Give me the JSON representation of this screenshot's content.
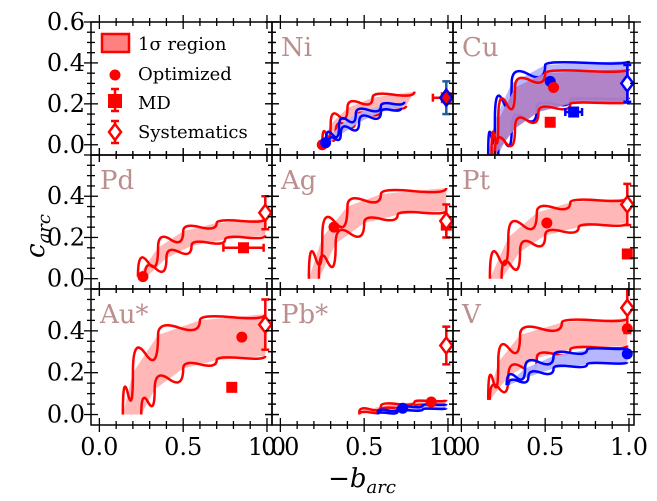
{
  "chart_data": {
    "type": "line",
    "layout": "3x3 grid of panels sharing axes",
    "xlabel": "−b_arc",
    "ylabel": "c_arc",
    "xlim": [
      -0.05,
      1.03
    ],
    "ylim": [
      -0.05,
      0.6
    ],
    "xticks": [
      "0.0",
      "0.5",
      "1.0"
    ],
    "yticks_top": [
      "0.0",
      "0.2",
      "0.4",
      "0.6"
    ],
    "yticks_other": [
      "0.0",
      "0.2",
      "0.4"
    ],
    "colors": {
      "red": "#ff0000",
      "red_fill": "#ffb3b3",
      "blue": "#0000ff",
      "blue_fill": "#b3b3ff",
      "overlap_fill": "#b07fc4",
      "steelblue": "#1f5f99",
      "label": "#bc8f8f"
    },
    "legend": {
      "position": "top-left panel",
      "entries": [
        {
          "label": "1σ region",
          "marker": "filled-rect"
        },
        {
          "label": "Optimized",
          "marker": "circle"
        },
        {
          "label": "MD",
          "marker": "square-errorbar"
        },
        {
          "label": "Systematics",
          "marker": "open-diamond-errorbar"
        }
      ]
    },
    "panels": [
      {
        "name": "legend",
        "row": 0,
        "col": 0,
        "label": ""
      },
      {
        "name": "Ni",
        "row": 0,
        "col": 1,
        "label": "Ni",
        "bands": [
          {
            "color": "red",
            "upper": [
              [
                0.25,
                0.0
              ],
              [
                0.3,
                0.1
              ],
              [
                0.4,
                0.18
              ],
              [
                0.55,
                0.23
              ],
              [
                0.8,
                0.26
              ]
            ],
            "lower": [
              [
                0.27,
                0.0
              ],
              [
                0.33,
                0.06
              ],
              [
                0.45,
                0.13
              ],
              [
                0.6,
                0.17
              ],
              [
                0.75,
                0.19
              ]
            ]
          },
          {
            "color": "blue",
            "upper": [
              [
                0.27,
                0.01
              ],
              [
                0.35,
                0.09
              ],
              [
                0.45,
                0.15
              ],
              [
                0.6,
                0.19
              ],
              [
                0.74,
                0.21
              ]
            ],
            "lower": [
              [
                0.29,
                0.01
              ],
              [
                0.36,
                0.05
              ],
              [
                0.47,
                0.11
              ],
              [
                0.6,
                0.16
              ],
              [
                0.72,
                0.18
              ]
            ]
          }
        ],
        "optimized": [
          {
            "color": "red",
            "x": 0.25,
            "y": 0.0
          },
          {
            "color": "blue",
            "x": 0.27,
            "y": 0.01
          }
        ],
        "md": [
          {
            "color": "red",
            "x": 0.99,
            "y": 0.23,
            "xerr": 0.08,
            "yerr": 0.0
          }
        ],
        "systematics": [
          {
            "color": "steelblue",
            "x": 0.99,
            "y": 0.23,
            "yerr": 0.08
          },
          {
            "color": "blue",
            "x": 0.99,
            "y": 0.23,
            "yerr": 0.0
          }
        ]
      },
      {
        "name": "Cu",
        "row": 0,
        "col": 2,
        "label": "Cu",
        "bands": [
          {
            "color": "blue",
            "upper": [
              [
                0.16,
                -0.05
              ],
              [
                0.2,
                0.12
              ],
              [
                0.3,
                0.3
              ],
              [
                0.5,
                0.39
              ],
              [
                1.0,
                0.41
              ]
            ],
            "lower": [
              [
                0.22,
                -0.05
              ],
              [
                0.3,
                0.08
              ],
              [
                0.45,
                0.18
              ],
              [
                0.65,
                0.22
              ],
              [
                1.0,
                0.23
              ]
            ]
          },
          {
            "color": "red",
            "upper": [
              [
                0.18,
                -0.05
              ],
              [
                0.22,
                0.12
              ],
              [
                0.32,
                0.28
              ],
              [
                0.5,
                0.35
              ],
              [
                1.0,
                0.37
              ]
            ],
            "lower": [
              [
                0.2,
                -0.05
              ],
              [
                0.32,
                0.08
              ],
              [
                0.46,
                0.16
              ],
              [
                0.65,
                0.2
              ],
              [
                1.0,
                0.21
              ]
            ]
          }
        ],
        "optimized": [
          {
            "color": "blue",
            "x": 0.53,
            "y": 0.31
          },
          {
            "color": "red",
            "x": 0.55,
            "y": 0.28
          }
        ],
        "md": [
          {
            "color": "red",
            "x": 0.53,
            "y": 0.11,
            "xerr": 0.0,
            "yerr": 0.0
          },
          {
            "color": "blue",
            "x": 0.67,
            "y": 0.16,
            "xerr": 0.05,
            "yerr": 0.02
          }
        ],
        "systematics": [
          {
            "color": "blue",
            "x": 0.99,
            "y": 0.3,
            "yerr": 0.09
          }
        ]
      },
      {
        "name": "Pd",
        "row": 1,
        "col": 0,
        "label": "Pd",
        "bands": [
          {
            "color": "red",
            "upper": [
              [
                0.23,
                0.01
              ],
              [
                0.35,
                0.15
              ],
              [
                0.5,
                0.23
              ],
              [
                0.7,
                0.27
              ],
              [
                0.99,
                0.29
              ]
            ],
            "lower": [
              [
                0.27,
                0.0
              ],
              [
                0.4,
                0.1
              ],
              [
                0.55,
                0.16
              ],
              [
                0.75,
                0.19
              ],
              [
                0.99,
                0.21
              ]
            ]
          }
        ],
        "optimized": [
          {
            "color": "red",
            "x": 0.26,
            "y": 0.01
          }
        ],
        "md": [
          {
            "color": "red",
            "x": 0.86,
            "y": 0.15,
            "xerr": 0.12,
            "yerr": 0.0
          }
        ],
        "systematics": [
          {
            "color": "red",
            "x": 0.99,
            "y": 0.32,
            "yerr": 0.08
          }
        ]
      },
      {
        "name": "Ag",
        "row": 1,
        "col": 1,
        "label": "Ag",
        "bands": [
          {
            "color": "red",
            "upper": [
              [
                0.17,
                0.0
              ],
              [
                0.25,
                0.2
              ],
              [
                0.4,
                0.35
              ],
              [
                0.6,
                0.41
              ],
              [
                0.99,
                0.44
              ]
            ],
            "lower": [
              [
                0.23,
                0.0
              ],
              [
                0.33,
                0.17
              ],
              [
                0.5,
                0.27
              ],
              [
                0.7,
                0.31
              ],
              [
                0.99,
                0.33
              ]
            ]
          }
        ],
        "optimized": [
          {
            "color": "red",
            "x": 0.32,
            "y": 0.25
          }
        ],
        "md": [
          {
            "color": "red",
            "x": 0.99,
            "y": 0.26,
            "xerr": 0.0,
            "yerr": 0.05
          }
        ],
        "systematics": [
          {
            "color": "red",
            "x": 0.99,
            "y": 0.28,
            "yerr": 0.08
          }
        ]
      },
      {
        "name": "Pt",
        "row": 1,
        "col": 2,
        "label": "Pt",
        "bands": [
          {
            "color": "red",
            "upper": [
              [
                0.17,
                0.0
              ],
              [
                0.28,
                0.2
              ],
              [
                0.45,
                0.32
              ],
              [
                0.65,
                0.37
              ],
              [
                0.99,
                0.39
              ]
            ],
            "lower": [
              [
                0.24,
                0.0
              ],
              [
                0.35,
                0.13
              ],
              [
                0.5,
                0.21
              ],
              [
                0.7,
                0.25
              ],
              [
                0.99,
                0.27
              ]
            ]
          }
        ],
        "optimized": [
          {
            "color": "red",
            "x": 0.51,
            "y": 0.27
          }
        ],
        "md": [
          {
            "color": "red",
            "x": 0.99,
            "y": 0.12,
            "xerr": 0.0,
            "yerr": 0.0
          }
        ],
        "systematics": [
          {
            "color": "red",
            "x": 0.99,
            "y": 0.36,
            "yerr": 0.1
          }
        ]
      },
      {
        "name": "Au*",
        "row": 2,
        "col": 0,
        "label": "Au*",
        "bands": [
          {
            "color": "red",
            "upper": [
              [
                0.14,
                0.0
              ],
              [
                0.2,
                0.2
              ],
              [
                0.35,
                0.38
              ],
              [
                0.6,
                0.45
              ],
              [
                0.99,
                0.48
              ]
            ],
            "lower": [
              [
                0.25,
                0.0
              ],
              [
                0.33,
                0.12
              ],
              [
                0.5,
                0.22
              ],
              [
                0.7,
                0.26
              ],
              [
                0.99,
                0.28
              ]
            ]
          }
        ],
        "optimized": [
          {
            "color": "red",
            "x": 0.85,
            "y": 0.37
          }
        ],
        "md": [
          {
            "color": "red",
            "x": 0.79,
            "y": 0.13,
            "xerr": 0.0,
            "yerr": 0.0
          }
        ],
        "systematics": [
          {
            "color": "red",
            "x": 0.99,
            "y": 0.43,
            "yerr": 0.12
          }
        ]
      },
      {
        "name": "Pb*",
        "row": 2,
        "col": 1,
        "label": "Pb*",
        "bands": [
          {
            "color": "red",
            "upper": [
              [
                0.47,
                0.01
              ],
              [
                0.6,
                0.04
              ],
              [
                0.8,
                0.06
              ],
              [
                0.99,
                0.07
              ]
            ],
            "lower": [
              [
                0.47,
                0.0
              ],
              [
                0.6,
                0.02
              ],
              [
                0.8,
                0.04
              ],
              [
                0.99,
                0.05
              ]
            ]
          },
          {
            "color": "blue",
            "upper": [
              [
                0.58,
                0.01
              ],
              [
                0.7,
                0.03
              ],
              [
                0.85,
                0.045
              ],
              [
                0.99,
                0.05
              ]
            ],
            "lower": [
              [
                0.58,
                0.0
              ],
              [
                0.7,
                0.015
              ],
              [
                0.85,
                0.025
              ],
              [
                0.99,
                0.03
              ]
            ]
          }
        ],
        "optimized": [
          {
            "color": "blue",
            "x": 0.73,
            "y": 0.03
          },
          {
            "color": "red",
            "x": 0.9,
            "y": 0.06
          }
        ],
        "md": [],
        "systematics": [
          {
            "color": "red",
            "x": 0.99,
            "y": 0.33,
            "yerr": 0.09
          }
        ]
      },
      {
        "name": "V",
        "row": 2,
        "col": 2,
        "label": "V",
        "bands": [
          {
            "color": "red",
            "upper": [
              [
                0.16,
                0.07
              ],
              [
                0.22,
                0.25
              ],
              [
                0.35,
                0.38
              ],
              [
                0.6,
                0.44
              ],
              [
                0.99,
                0.46
              ]
            ],
            "lower": [
              [
                0.17,
                0.07
              ],
              [
                0.28,
                0.18
              ],
              [
                0.45,
                0.27
              ],
              [
                0.65,
                0.31
              ],
              [
                0.99,
                0.33
              ]
            ]
          },
          {
            "color": "blue",
            "upper": [
              [
                0.27,
                0.14
              ],
              [
                0.38,
                0.22
              ],
              [
                0.55,
                0.28
              ],
              [
                0.75,
                0.31
              ],
              [
                0.99,
                0.32
              ]
            ],
            "lower": [
              [
                0.28,
                0.14
              ],
              [
                0.4,
                0.18
              ],
              [
                0.55,
                0.22
              ],
              [
                0.75,
                0.24
              ],
              [
                0.99,
                0.25
              ]
            ]
          }
        ],
        "optimized": [
          {
            "color": "red",
            "x": 0.99,
            "y": 0.41
          },
          {
            "color": "blue",
            "x": 0.99,
            "y": 0.29
          }
        ],
        "md": [],
        "systematics": [
          {
            "color": "red",
            "x": 0.99,
            "y": 0.51,
            "yerr": 0.12
          }
        ]
      }
    ]
  }
}
